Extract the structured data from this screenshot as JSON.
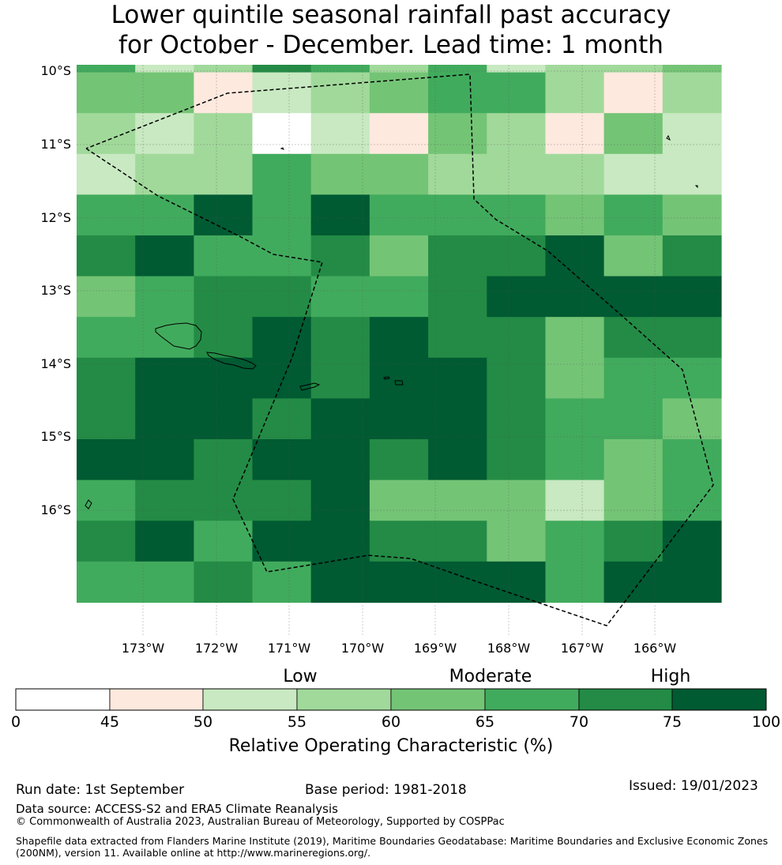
{
  "title": {
    "line1": "Lower quintile seasonal rainfall past accuracy",
    "line2": "for October - December. Lead time: 1 month"
  },
  "map": {
    "lat_labels": [
      "10°S",
      "11°S",
      "12°S",
      "13°S",
      "14°S",
      "15°S",
      "16°S"
    ],
    "lon_labels": [
      "173°W",
      "172°W",
      "171°W",
      "170°W",
      "169°W",
      "168°W",
      "167°W",
      "166°W"
    ],
    "grid_values": [
      [
        67,
        52,
        57,
        72,
        67,
        57,
        67,
        52,
        57,
        57,
        62
      ],
      [
        62,
        62,
        47,
        52,
        57,
        62,
        67,
        67,
        57,
        47,
        57
      ],
      [
        57,
        52,
        57,
        40,
        52,
        47,
        62,
        57,
        47,
        62,
        52
      ],
      [
        52,
        57,
        57,
        67,
        62,
        62,
        57,
        57,
        57,
        52,
        52
      ],
      [
        67,
        67,
        77,
        67,
        77,
        67,
        67,
        67,
        62,
        67,
        62
      ],
      [
        72,
        77,
        67,
        67,
        72,
        62,
        72,
        72,
        77,
        62,
        72
      ],
      [
        62,
        67,
        72,
        72,
        67,
        67,
        72,
        77,
        77,
        77,
        77
      ],
      [
        67,
        67,
        72,
        77,
        72,
        77,
        72,
        72,
        62,
        72,
        72
      ],
      [
        72,
        77,
        77,
        77,
        72,
        77,
        77,
        72,
        62,
        67,
        67
      ],
      [
        72,
        77,
        77,
        72,
        77,
        77,
        77,
        72,
        67,
        67,
        62
      ],
      [
        77,
        77,
        72,
        77,
        77,
        72,
        77,
        72,
        67,
        62,
        67
      ],
      [
        67,
        72,
        72,
        72,
        77,
        62,
        62,
        62,
        52,
        62,
        67
      ],
      [
        72,
        77,
        67,
        77,
        77,
        72,
        72,
        62,
        67,
        72,
        77
      ],
      [
        67,
        67,
        72,
        67,
        77,
        77,
        77,
        77,
        67,
        77,
        77
      ]
    ]
  },
  "colorbar": {
    "categories": [
      "Low",
      "Moderate",
      "High"
    ],
    "ticks": [
      "0",
      "45",
      "50",
      "55",
      "60",
      "65",
      "70",
      "75",
      "100"
    ],
    "colors": [
      "#ffffff",
      "#fee9df",
      "#c8e9c1",
      "#a1d99b",
      "#74c476",
      "#41ab5d",
      "#238b45",
      "#005a32"
    ],
    "label": "Relative Operating Characteristic (%)"
  },
  "footer": {
    "run_date": "Run date: 1st September",
    "base_period": "Base period: 1981-2018",
    "issued": "Issued: 19/01/2023",
    "data_source": "Data source: ACCESS-S2 and ERA5 Climate Reanalysis",
    "copyright": "© Commonwealth of Australia 2023, Australian Bureau of Meteorology, Supported by COSPPac",
    "shapefile_line1": "Shapefile data extracted from Flanders Marine Institute (2019), Maritime Boundaries Geodatabase: Maritime Boundaries and Exclusive Economic Zones",
    "shapefile_line2": "(200NM), version 11. Available online at http://www.marineregions.org/."
  }
}
